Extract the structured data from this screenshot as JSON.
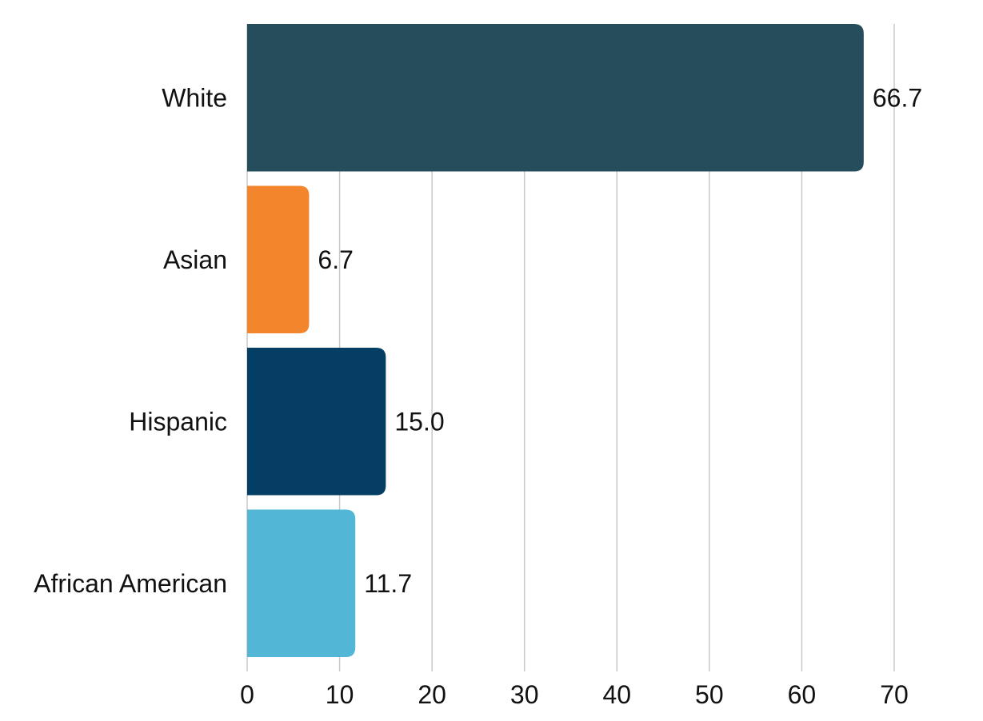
{
  "chart_data": {
    "type": "bar",
    "orientation": "horizontal",
    "categories": [
      "White",
      "Asian",
      "Hispanic",
      "African American"
    ],
    "values": [
      66.7,
      6.7,
      15.0,
      11.7
    ],
    "value_labels": [
      "66.7",
      "6.7",
      "15.0",
      "11.7"
    ],
    "colors": [
      "#264D5C",
      "#F3852D",
      "#043E65",
      "#52B6D6"
    ],
    "x_ticks": [
      0,
      10,
      20,
      30,
      40,
      50,
      60,
      70
    ],
    "xlim": [
      0,
      70
    ],
    "grid": true,
    "title": "",
    "xlabel": "",
    "ylabel": ""
  }
}
